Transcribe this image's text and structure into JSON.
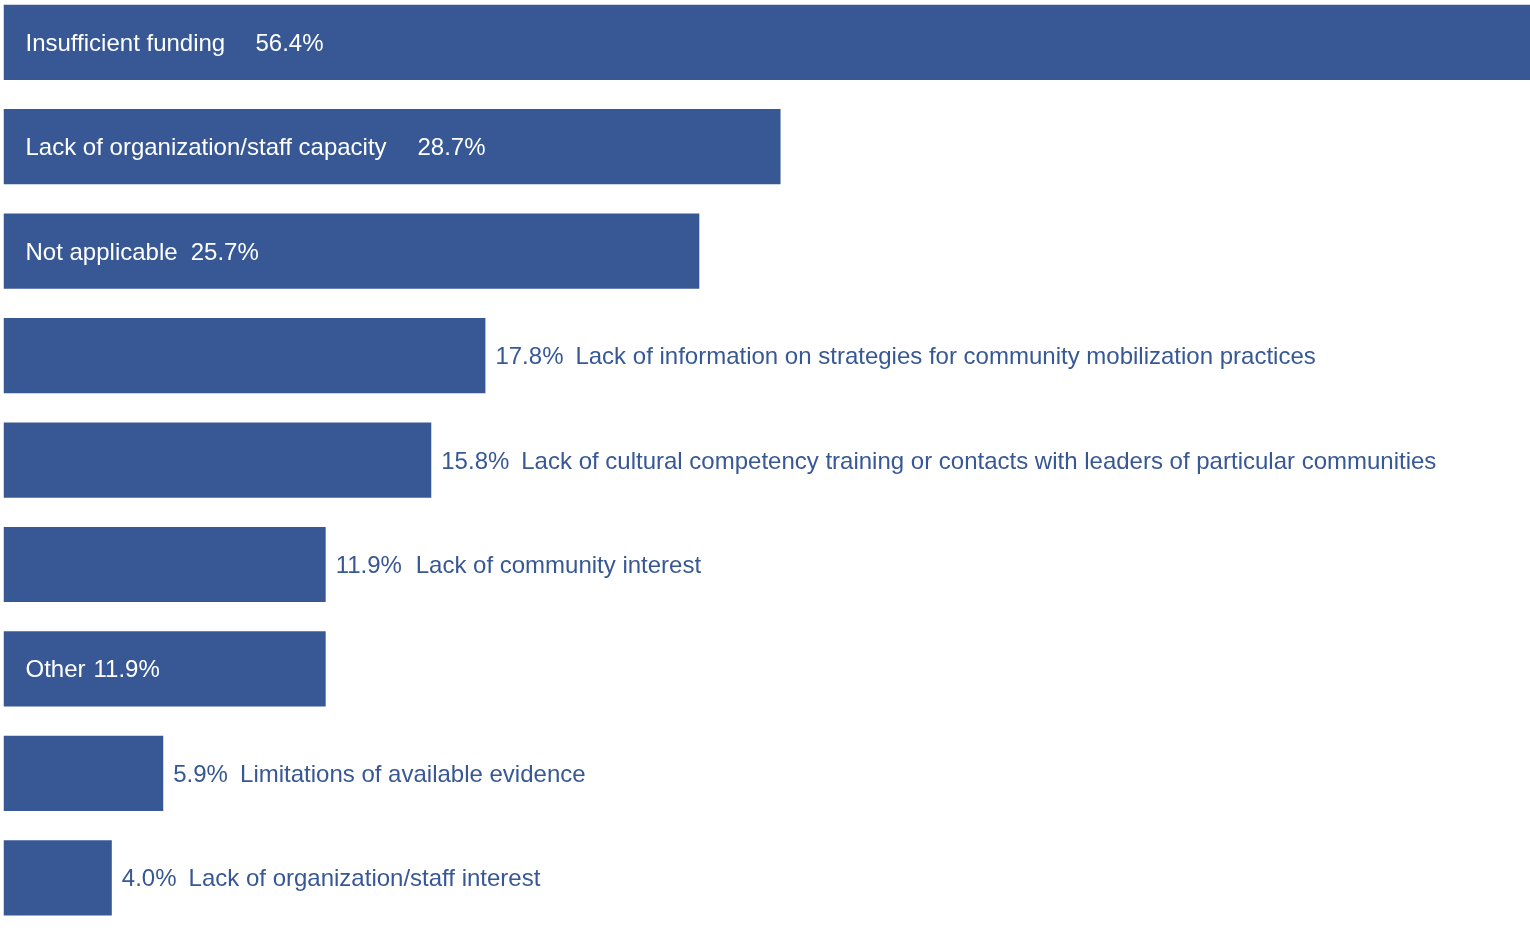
{
  "chart_data": {
    "type": "bar",
    "orientation": "horizontal",
    "categories": [
      "Insufficient funding",
      "Lack of organization/staff capacity",
      "Not applicable",
      "Lack of information on strategies for community mobilization practices",
      "Lack of cultural competency training or contacts with leaders of particular communities",
      "Lack of community interest",
      "Other",
      "Limitations of available evidence",
      "Lack of organization/staff interest"
    ],
    "values": [
      56.4,
      28.7,
      25.7,
      17.8,
      15.8,
      11.9,
      11.9,
      5.9,
      4.0
    ],
    "value_labels": [
      "56.4%",
      "28.7%",
      "25.7%",
      "17.8%",
      "15.8%",
      "11.9%",
      "11.9%",
      "5.9%",
      "4.0%"
    ],
    "color": "#375895",
    "grid": false
  }
}
